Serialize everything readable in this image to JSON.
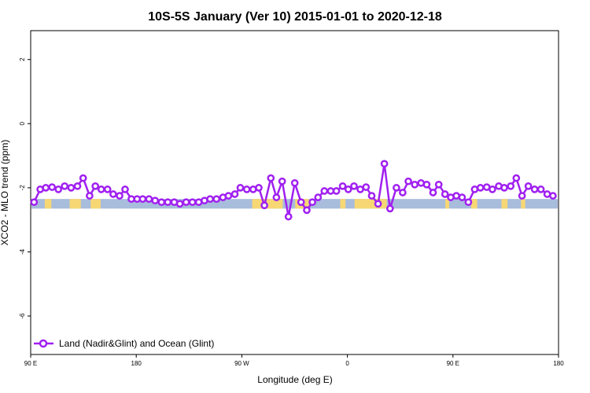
{
  "chart_data": {
    "type": "line",
    "title": "10S-5S January (Ver 10)   2015-01-01 to 2020-12-18",
    "xlabel": "Longitude (deg E)",
    "ylabel": "XCO2 - MLO trend (ppm)",
    "xlim": [
      90,
      450
    ],
    "ylim": [
      -7.2,
      2.9
    ],
    "x_ticks": [
      {
        "value": 90,
        "label": "90 E"
      },
      {
        "value": 162,
        "label": "180"
      },
      {
        "value": 234,
        "label": "90 W"
      },
      {
        "value": 306,
        "label": "0"
      },
      {
        "value": 378,
        "label": "90 E"
      },
      {
        "value": 450,
        "label": "180"
      }
    ],
    "y_ticks": [
      {
        "value": 2,
        "label": "2"
      },
      {
        "value": 0,
        "label": "0"
      },
      {
        "value": -2,
        "label": "-2"
      },
      {
        "value": -4,
        "label": "-4"
      },
      {
        "value": -6,
        "label": "-6"
      }
    ],
    "legend_position": "bottom-left",
    "series": [
      {
        "name": "Land (Nadir&Glint) and Ocean (Glint)",
        "color": "#a020f0",
        "x": [
          92.3,
          96.5,
          100.3,
          104.6,
          108.9,
          113.2,
          117.6,
          121.9,
          125.8,
          130.2,
          134.1,
          138.1,
          142.4,
          146.3,
          150.6,
          154.4,
          158.7,
          162.6,
          166.4,
          170.7,
          174.9,
          179.2,
          183.5,
          187.9,
          191.7,
          196.0,
          200.3,
          204.6,
          208.5,
          212.4,
          216.7,
          221.1,
          224.9,
          229.2,
          233.0,
          237.4,
          241.7,
          245.6,
          249.4,
          253.8,
          257.6,
          261.5,
          265.8,
          270.1,
          274.4,
          278.3,
          282.1,
          286.0,
          290.3,
          294.6,
          298.5,
          302.8,
          306.6,
          310.5,
          314.8,
          318.7,
          322.6,
          326.9,
          331.2,
          335.1,
          339.4,
          343.7,
          347.6,
          351.9,
          356.2,
          360.1,
          364.4,
          368.3,
          372.6,
          376.5,
          380.3,
          384.2,
          388.5,
          392.8,
          396.7,
          401.0,
          404.9,
          409.2,
          413.0,
          417.4,
          421.2,
          425.1,
          429.4,
          433.7,
          438.0,
          442.3,
          446.2
        ],
        "values": [
          -2.45,
          -2.05,
          -2.0,
          -1.98,
          -2.05,
          -1.95,
          -2.0,
          -1.95,
          -1.7,
          -2.25,
          -1.95,
          -2.05,
          -2.05,
          -2.2,
          -2.25,
          -2.05,
          -2.35,
          -2.35,
          -2.35,
          -2.35,
          -2.4,
          -2.45,
          -2.45,
          -2.45,
          -2.5,
          -2.45,
          -2.45,
          -2.45,
          -2.4,
          -2.35,
          -2.35,
          -2.3,
          -2.25,
          -2.2,
          -2.0,
          -2.05,
          -2.05,
          -2.0,
          -2.55,
          -1.7,
          -2.3,
          -1.8,
          -2.9,
          -1.85,
          -2.45,
          -2.7,
          -2.45,
          -2.3,
          -2.1,
          -2.1,
          -2.1,
          -1.95,
          -2.05,
          -1.95,
          -2.05,
          -1.98,
          -2.25,
          -2.5,
          -1.25,
          -2.65,
          -2.0,
          -2.15,
          -1.8,
          -1.9,
          -1.85,
          -1.9,
          -2.15,
          -1.9,
          -2.2,
          -2.3,
          -2.25,
          -2.3,
          -2.45,
          -2.05,
          -2.0,
          -1.98,
          -2.05,
          -1.95,
          -2.0,
          -1.95,
          -1.7,
          -2.25,
          -1.95,
          -2.05,
          -2.05,
          -2.2,
          -2.25
        ]
      }
    ],
    "background_strip": {
      "y_range": [
        -2.65,
        -2.35
      ],
      "ocean_color": "#a8bcdc",
      "land_color": "#f7d774",
      "land_spans": [
        [
          99.6,
          104.1
        ],
        [
          116.6,
          124.2
        ],
        [
          130.9,
          137.7
        ],
        [
          241.1,
          261.9
        ],
        [
          270.4,
          279.8
        ],
        [
          301.1,
          304.7
        ],
        [
          310.9,
          332.9
        ],
        [
          372.8,
          375.4
        ],
        [
          390.4,
          394.5
        ],
        [
          411.1,
          415.2
        ],
        [
          424.4,
          427.3
        ]
      ]
    }
  }
}
